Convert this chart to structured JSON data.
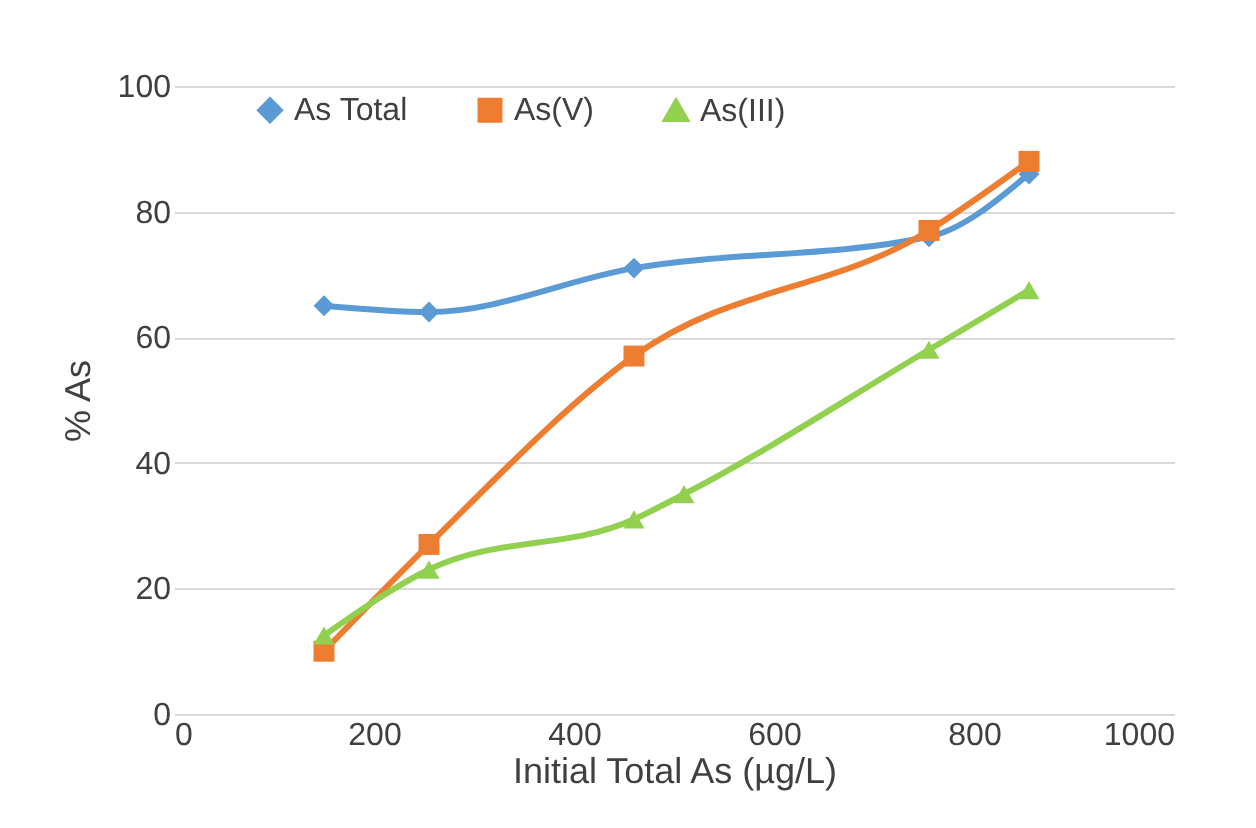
{
  "chart_data": {
    "type": "line",
    "xlabel": "Initial Total As (µg/L)",
    "ylabel": "% As",
    "xlim": [
      0,
      1000
    ],
    "xticks": [
      0,
      200,
      400,
      600,
      800,
      1000
    ],
    "ylim": [
      0,
      100
    ],
    "yticks": [
      0,
      20,
      40,
      60,
      80,
      100
    ],
    "grid": "y",
    "legend": "top",
    "series": [
      {
        "name": "As Total",
        "color": "#5b9bd5",
        "marker": "diamond",
        "x": [
          150,
          255,
          460,
          755,
          855
        ],
        "values": [
          65,
          64,
          71,
          76,
          86
        ]
      },
      {
        "name": "As(V)",
        "color": "#ed7d31",
        "marker": "square",
        "x": [
          150,
          255,
          460,
          755,
          855
        ],
        "values": [
          10,
          27,
          57,
          77,
          88
        ]
      },
      {
        "name": "As(III)",
        "color": "#92d050",
        "marker": "triangle",
        "x": [
          150,
          255,
          460,
          510,
          755,
          855
        ],
        "values": [
          12.5,
          23,
          31,
          35,
          58,
          67.5
        ]
      }
    ]
  }
}
